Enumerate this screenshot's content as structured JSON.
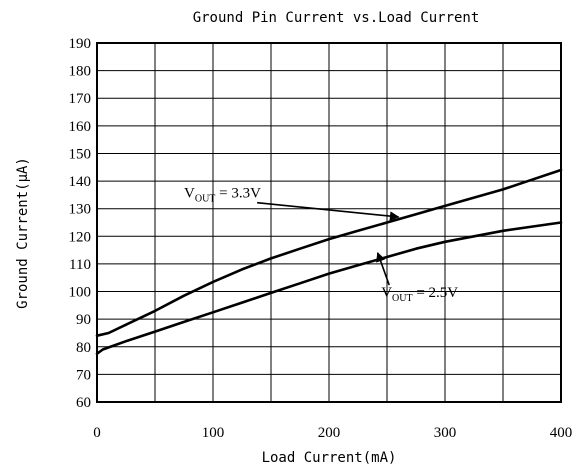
{
  "chart_data": {
    "type": "line",
    "title": "Ground Pin Current vs.Load Current",
    "xlabel": "Load Current(mA)",
    "ylabel": "Ground Current(μA)",
    "xlim": [
      0,
      400
    ],
    "ylim": [
      60,
      190
    ],
    "x_ticks": [
      0,
      100,
      200,
      300,
      400
    ],
    "y_ticks": [
      60,
      70,
      80,
      90,
      100,
      110,
      120,
      130,
      140,
      150,
      160,
      170,
      180,
      190
    ],
    "grid": true,
    "series": [
      {
        "name": "VOUT = 3.3V",
        "x": [
          0,
          10,
          25,
          50,
          75,
          100,
          125,
          150,
          175,
          200,
          225,
          250,
          275,
          300,
          325,
          350,
          375,
          400
        ],
        "values": [
          84,
          85,
          88,
          93,
          98.5,
          103.5,
          108,
          112,
          115.5,
          119,
          122,
          125,
          128,
          131,
          134,
          137,
          140.5,
          144
        ]
      },
      {
        "name": "VOUT = 2.5V",
        "x": [
          0,
          5,
          25,
          50,
          75,
          100,
          125,
          150,
          175,
          200,
          225,
          250,
          275,
          300,
          325,
          350,
          375,
          400
        ],
        "values": [
          77.5,
          79,
          82,
          85.5,
          89,
          92.5,
          96,
          99.5,
          103,
          106.5,
          109.5,
          112.5,
          115.5,
          118,
          120,
          122,
          123.5,
          125
        ]
      }
    ],
    "annotations": [
      {
        "base": "V",
        "sub": "OUT",
        "text": " = 3.3V",
        "x": 75,
        "y": 134,
        "arrow_to": [
          260,
          127
        ]
      },
      {
        "base": "V",
        "sub": "OUT",
        "text": " = 2.5V",
        "x": 245,
        "y": 98,
        "arrow_to": [
          242,
          114
        ]
      }
    ]
  }
}
